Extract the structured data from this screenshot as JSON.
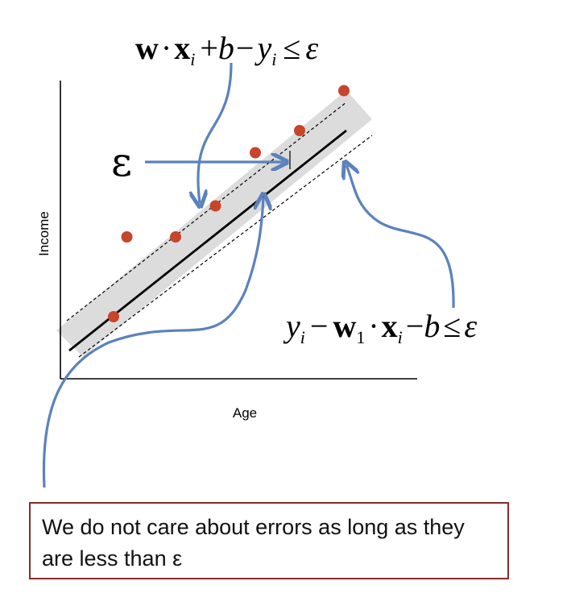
{
  "figure": {
    "formula_top": {
      "w": "w",
      "dot": "·",
      "x": "x",
      "sub_i": "i",
      "plus": "+",
      "b": "b",
      "minus": "−",
      "y": "y",
      "sub_i2": "i",
      "le": "≤",
      "eps": "ε"
    },
    "formula_right": {
      "y": "y",
      "sub_i": "i",
      "minus": "−",
      "w": "w",
      "sub_1": "1",
      "dot": "·",
      "x": "x",
      "sub_i2": "i",
      "minus2": "−",
      "b": "b",
      "le": "≤",
      "eps": "ε"
    },
    "epsilon_label": "ε",
    "xlabel": "Age",
    "ylabel": "Income",
    "note": "We do not care about errors as long as they are less than ε"
  },
  "chart_data": {
    "type": "scatter",
    "xlabel": "Age",
    "ylabel": "Income",
    "points": [
      {
        "x": 1.2,
        "y": 1.4
      },
      {
        "x": 1.5,
        "y": 3.2
      },
      {
        "x": 2.6,
        "y": 3.2
      },
      {
        "x": 3.5,
        "y": 3.9
      },
      {
        "x": 4.4,
        "y": 5.1
      },
      {
        "x": 5.4,
        "y": 5.6
      },
      {
        "x": 6.4,
        "y": 6.5
      }
    ],
    "regression_line": {
      "x": [
        0.2,
        6.5
      ],
      "y": [
        0.3,
        6.1
      ]
    },
    "epsilon_band": 0.6,
    "xlim": [
      0,
      8
    ],
    "ylim": [
      0,
      7.4
    ],
    "colors": {
      "points": "#c8442a",
      "band": "#dcdcdc",
      "line": "#000000",
      "arrow": "#5b82bd"
    }
  }
}
